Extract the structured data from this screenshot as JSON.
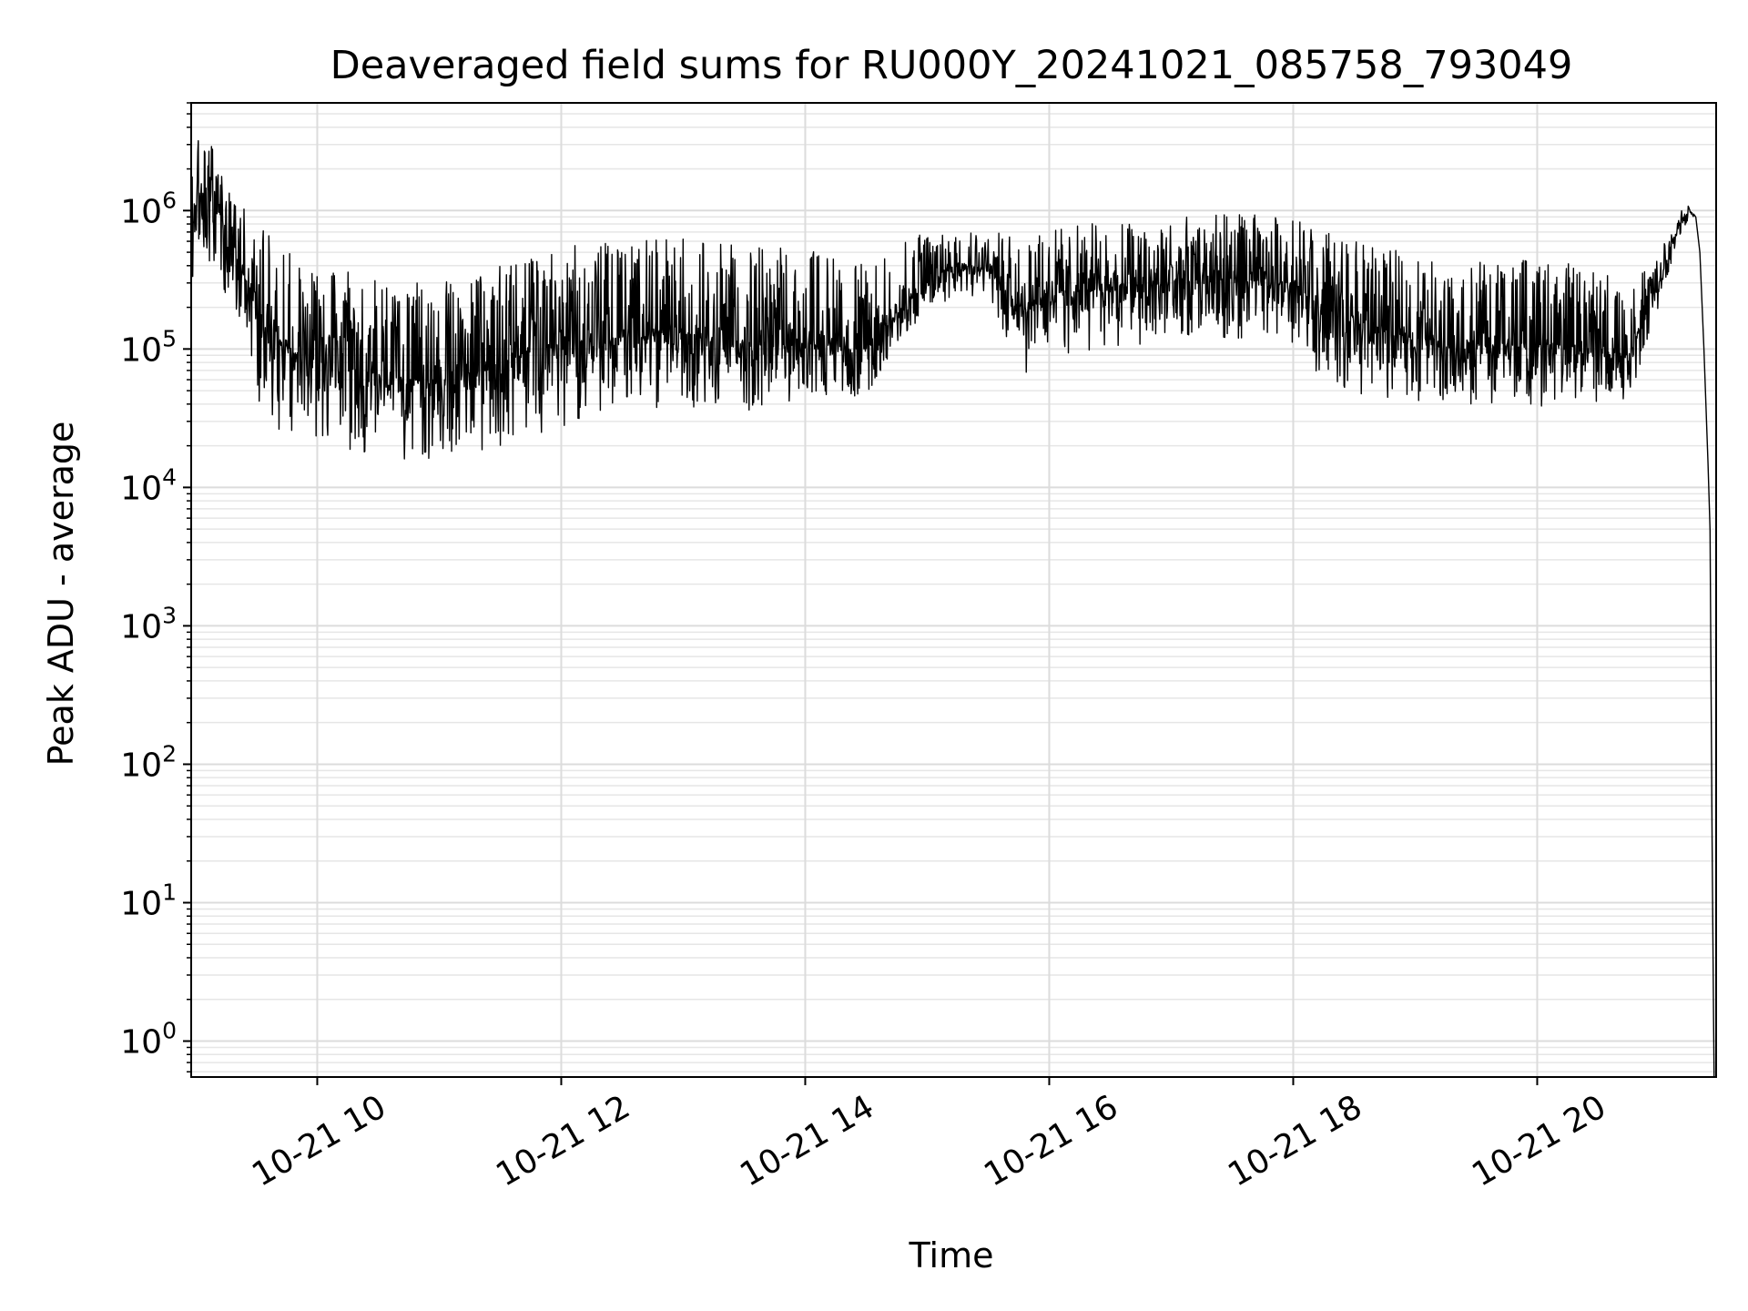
{
  "chart_data": {
    "type": "line",
    "title": "Deaveraged field sums for RU000Y_20241021_085758_793049",
    "xlabel": "Time",
    "ylabel": "Peak ADU - average",
    "yscale": "log",
    "ylim": [
      0.55,
      6000000
    ],
    "xlim": [
      "2024-10-21T08:58",
      "2024-10-21T21:28"
    ],
    "x_ticks": [
      {
        "t": "2024-10-21T10:00",
        "label": "10-21 10"
      },
      {
        "t": "2024-10-21T12:00",
        "label": "10-21 12"
      },
      {
        "t": "2024-10-21T14:00",
        "label": "10-21 14"
      },
      {
        "t": "2024-10-21T16:00",
        "label": "10-21 16"
      },
      {
        "t": "2024-10-21T18:00",
        "label": "10-21 18"
      },
      {
        "t": "2024-10-21T20:00",
        "label": "10-21 20"
      }
    ],
    "y_ticks": [
      {
        "value": 1,
        "base": "10",
        "exp": "0"
      },
      {
        "value": 10,
        "base": "10",
        "exp": "1"
      },
      {
        "value": 100,
        "base": "10",
        "exp": "2"
      },
      {
        "value": 1000,
        "base": "10",
        "exp": "3"
      },
      {
        "value": 10000,
        "base": "10",
        "exp": "4"
      },
      {
        "value": 100000,
        "base": "10",
        "exp": "5"
      },
      {
        "value": 1000000,
        "base": "10",
        "exp": "6"
      }
    ],
    "grid": true,
    "line_color": "#000000",
    "series": [
      {
        "x": [
          "2024-10-21T08:58",
          "2024-10-21T09:05",
          "2024-10-21T09:10",
          "2024-10-21T09:15",
          "2024-10-21T09:20",
          "2024-10-21T09:30",
          "2024-10-21T09:40",
          "2024-10-21T09:50",
          "2024-10-21T10:00",
          "2024-10-21T10:20",
          "2024-10-21T10:40",
          "2024-10-21T11:00",
          "2024-10-21T11:20",
          "2024-10-21T11:40",
          "2024-10-21T12:00",
          "2024-10-21T12:30",
          "2024-10-21T13:00",
          "2024-10-21T13:30",
          "2024-10-21T14:00",
          "2024-10-21T14:30",
          "2024-10-21T14:45",
          "2024-10-21T15:00",
          "2024-10-21T15:15",
          "2024-10-21T15:30",
          "2024-10-21T15:45",
          "2024-10-21T16:00",
          "2024-10-21T16:30",
          "2024-10-21T17:00",
          "2024-10-21T17:30",
          "2024-10-21T18:00",
          "2024-10-21T18:30",
          "2024-10-21T19:00",
          "2024-10-21T19:30",
          "2024-10-21T20:00",
          "2024-10-21T20:30",
          "2024-10-21T20:45",
          "2024-10-21T21:00",
          "2024-10-21T21:10",
          "2024-10-21T21:15",
          "2024-10-21T21:18",
          "2024-10-21T21:20",
          "2024-10-21T21:22",
          "2024-10-21T21:24",
          "2024-10-21T21:25",
          "2024-10-21T21:26",
          "2024-10-21T21:27"
        ],
        "values": [
          1000000,
          1500000,
          1200000,
          800000,
          500000,
          200000,
          120000,
          90000,
          80000,
          70000,
          60000,
          60000,
          70000,
          90000,
          110000,
          120000,
          130000,
          110000,
          110000,
          100000,
          180000,
          300000,
          420000,
          380000,
          200000,
          250000,
          280000,
          300000,
          320000,
          300000,
          150000,
          120000,
          110000,
          110000,
          100000,
          90000,
          300000,
          800000,
          1000000,
          900000,
          500000,
          100000,
          15000,
          5000,
          30,
          0.5
        ],
        "spread_low": [
          0.3,
          0.3,
          0.3,
          0.3,
          0.3,
          0.2,
          0.2,
          0.2,
          0.25,
          0.25,
          0.25,
          0.25,
          0.25,
          0.25,
          0.25,
          0.3,
          0.3,
          0.3,
          0.4,
          0.45,
          0.6,
          0.6,
          0.6,
          0.6,
          0.3,
          0.3,
          0.35,
          0.4,
          0.35,
          0.3,
          0.3,
          0.35,
          0.35,
          0.35,
          0.4,
          0.45,
          0.7,
          0.8,
          0.9,
          1,
          1,
          1,
          1,
          1,
          1,
          1
        ],
        "spread_high": [
          3,
          2.5,
          2.2,
          2.2,
          2.5,
          4,
          5,
          5,
          5,
          5,
          5,
          5,
          5,
          5,
          5,
          5,
          5,
          5,
          5,
          4,
          3,
          2.5,
          2,
          2,
          3,
          3,
          3,
          3,
          3,
          3,
          4,
          4,
          4,
          4,
          4,
          3,
          1.6,
          1.3,
          1.1,
          1,
          1,
          1,
          1,
          1,
          1,
          1
        ]
      }
    ]
  }
}
